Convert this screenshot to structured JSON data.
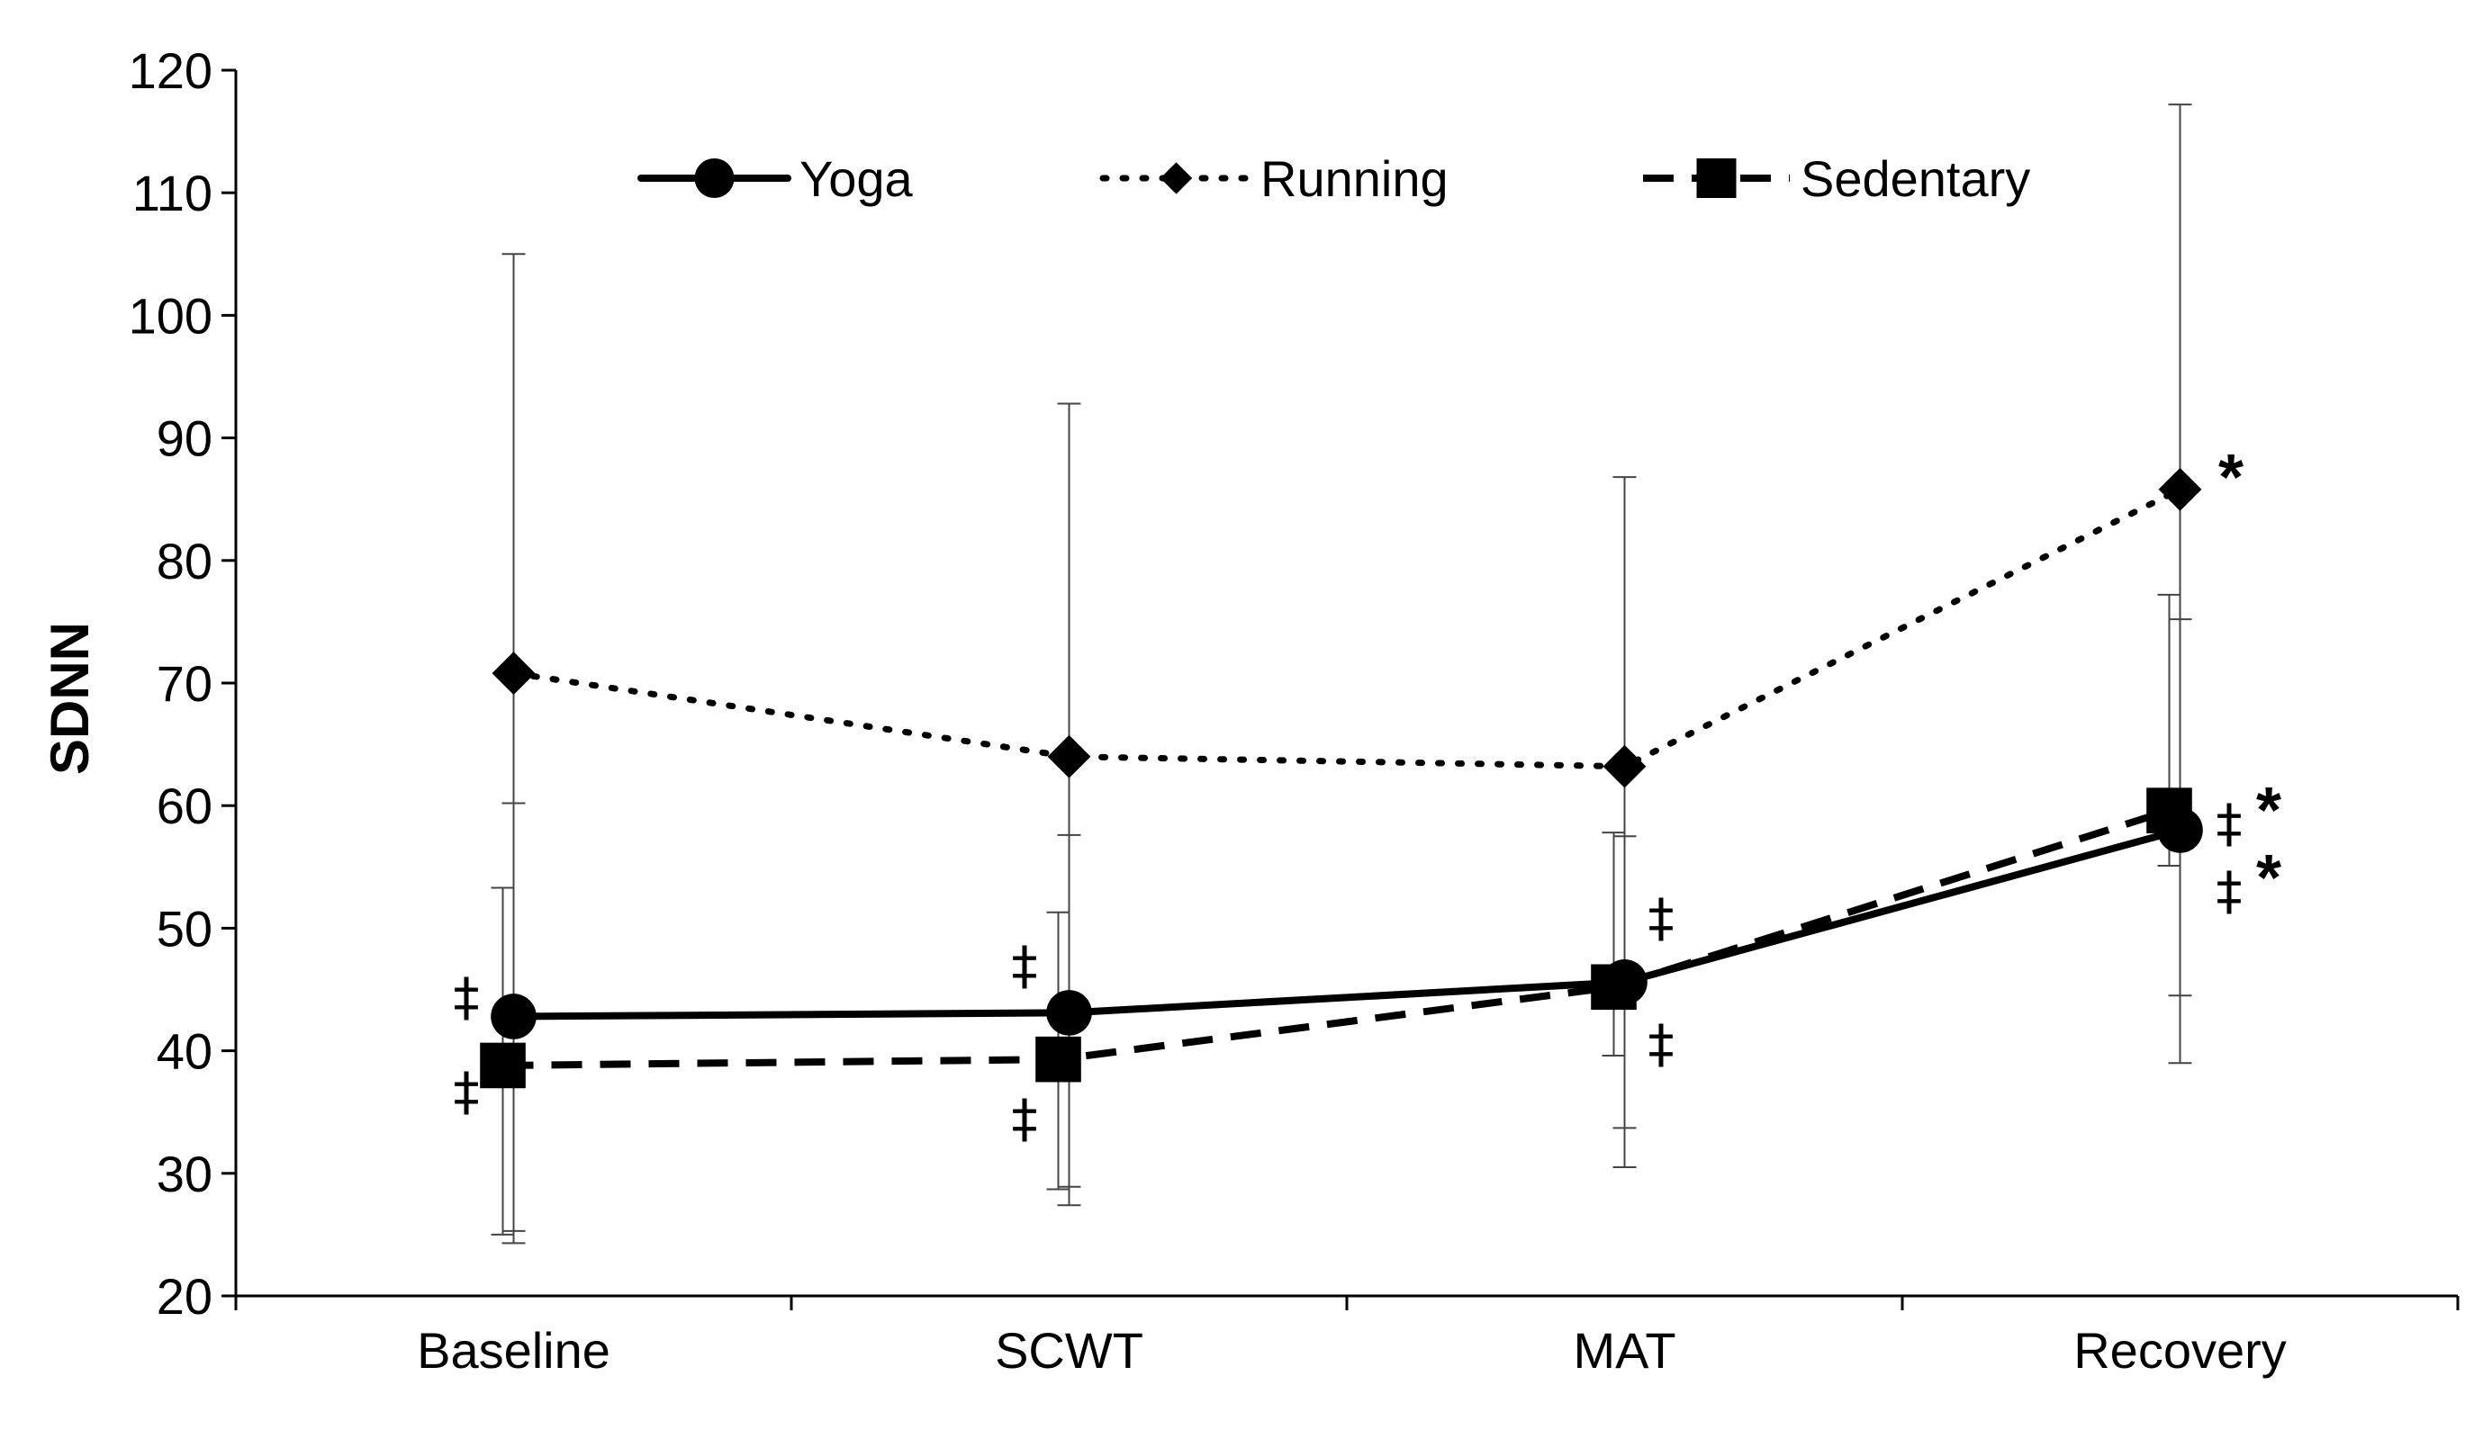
{
  "chart_data": {
    "type": "line",
    "title": "",
    "xlabel": "",
    "ylabel": "SDNN",
    "ylim": [
      20,
      120
    ],
    "yticks": [
      20,
      30,
      40,
      50,
      60,
      70,
      80,
      90,
      100,
      110,
      120
    ],
    "categories": [
      "Baseline",
      "SCWT",
      "MAT",
      "Recovery"
    ],
    "grid": false,
    "legend_position": "top",
    "series": [
      {
        "name": "Yoga",
        "line_style": "solid",
        "marker": "circle",
        "color": "#000000",
        "values": [
          42.8,
          43.1,
          45.6,
          58.0
        ],
        "error_low": [
          25.3,
          28.9,
          33.7,
          44.5
        ],
        "error_high": [
          60.2,
          57.6,
          57.5,
          75.2
        ],
        "annotations": [
          "‡",
          "‡",
          "‡",
          "‡*"
        ]
      },
      {
        "name": "Running",
        "line_style": "dotted",
        "marker": "diamond",
        "color": "#000000",
        "values": [
          70.8,
          64.0,
          63.2,
          85.8
        ],
        "error_low": [
          24.3,
          27.4,
          30.5,
          39.0
        ],
        "error_high": [
          105.0,
          92.8,
          86.8,
          117.2
        ],
        "annotations": [
          "",
          "",
          "",
          "*"
        ]
      },
      {
        "name": "Sedentary",
        "line_style": "dashed",
        "marker": "square",
        "color": "#000000",
        "values": [
          38.8,
          39.3,
          45.2,
          59.6
        ],
        "error_low": [
          25.0,
          28.7,
          39.6,
          55.1
        ],
        "error_high": [
          53.3,
          51.3,
          57.8,
          77.2
        ],
        "annotations": [
          "‡",
          "‡",
          "‡",
          "‡*"
        ]
      }
    ]
  }
}
